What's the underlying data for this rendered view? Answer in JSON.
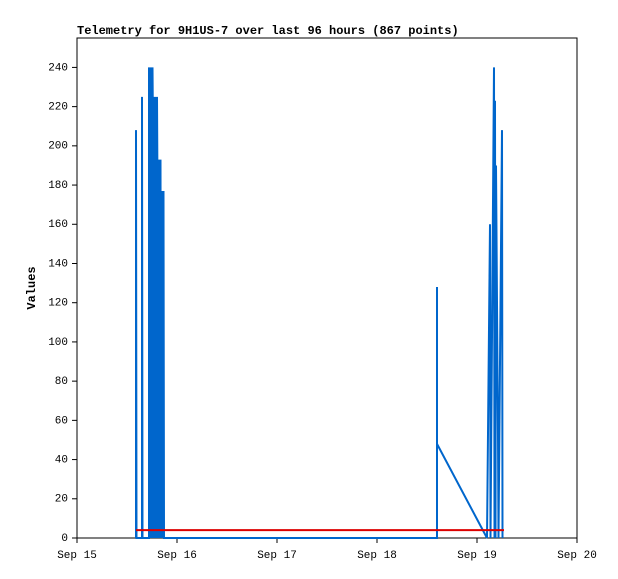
{
  "chart_data": {
    "type": "line",
    "title": "Telemetry for 9H1US-7 over last 96 hours (867 points)",
    "y_label": "Values",
    "xlim": [
      15,
      20
    ],
    "xticks": [
      {
        "value": 15,
        "label": "Sep 15"
      },
      {
        "value": 16,
        "label": "Sep 16"
      },
      {
        "value": 17,
        "label": "Sep 17"
      },
      {
        "value": 18,
        "label": "Sep 18"
      },
      {
        "value": 19,
        "label": "Sep 19"
      },
      {
        "value": 20,
        "label": "Sep 20"
      }
    ],
    "ylim": [
      0,
      255
    ],
    "yticks": [
      0,
      20,
      40,
      60,
      80,
      100,
      120,
      140,
      160,
      180,
      200,
      220,
      240
    ],
    "series": [
      {
        "color": "#0066cc",
        "x": [
          15.59,
          15.59,
          15.595,
          15.65,
          15.65,
          15.655,
          15.72,
          15.72,
          15.73,
          15.735,
          15.74,
          15.745,
          15.75,
          15.755,
          15.76,
          15.765,
          15.77,
          15.775,
          15.78,
          15.785,
          15.79,
          15.795,
          15.8,
          15.805,
          15.81,
          15.815,
          15.82,
          15.825,
          15.83,
          15.835,
          15.84,
          15.845,
          15.85,
          15.855,
          15.86,
          15.865,
          15.87,
          18.6,
          18.6,
          18.6,
          19.1,
          19.13,
          19.135,
          19.17,
          19.175,
          19.18,
          19.185,
          19.19,
          19.195,
          19.2,
          19.205,
          19.21,
          19.215,
          19.25,
          19.255
        ],
        "values": [
          0,
          208,
          0,
          0,
          225,
          0,
          0,
          240,
          0,
          240,
          0,
          240,
          0,
          240,
          208,
          0,
          225,
          0,
          225,
          0,
          225,
          0,
          225,
          177,
          0,
          193,
          0,
          193,
          0,
          193,
          0,
          177,
          0,
          177,
          0,
          177,
          0,
          0,
          128,
          48,
          0,
          160,
          0,
          240,
          0,
          223,
          0,
          190,
          155,
          120,
          85,
          52,
          0,
          208,
          0
        ]
      },
      {
        "color": "#dd0000",
        "x": [
          15.59,
          19.27
        ],
        "values": [
          4,
          4
        ]
      }
    ]
  }
}
